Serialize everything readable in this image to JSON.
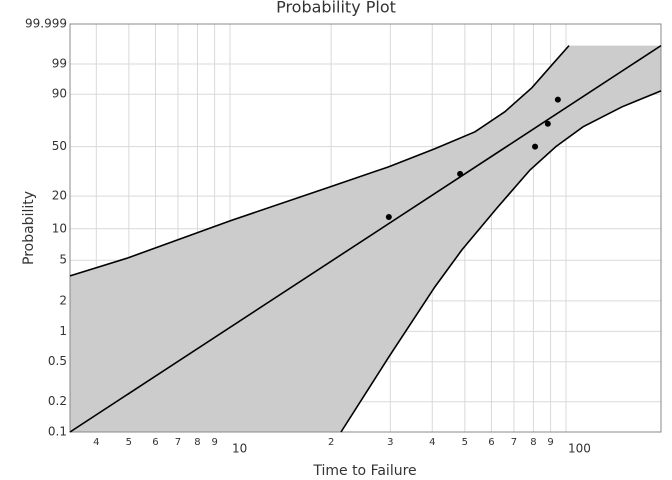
{
  "chart_data": {
    "type": "probability",
    "title": "Probability Plot",
    "x_label": "Time to Failure",
    "y_label": "Probability",
    "xscale": "log",
    "yscale": "weibull",
    "grid": true,
    "fill_color": "#cccccc",
    "color": "#000000",
    "xlim": [
      3.34,
      191.8
    ],
    "ylim": [
      0.1,
      99.999
    ],
    "xticks": [
      {
        "value": 4,
        "label": "4"
      },
      {
        "value": 5,
        "label": "5"
      },
      {
        "value": 6,
        "label": "6"
      },
      {
        "value": 7,
        "label": "7"
      },
      {
        "value": 8,
        "label": "8"
      },
      {
        "value": 9,
        "label": "9"
      },
      10,
      {
        "value": 20,
        "label": "2"
      },
      {
        "value": 30,
        "label": "3"
      },
      {
        "value": 40,
        "label": "4"
      },
      {
        "value": 50,
        "label": "5"
      },
      {
        "value": 60,
        "label": "6"
      },
      {
        "value": 70,
        "label": "7"
      },
      {
        "value": 80,
        "label": "8"
      },
      {
        "value": 90,
        "label": "9"
      },
      100
    ],
    "yticks": [
      0.1,
      0.2,
      0.5,
      1,
      2,
      5,
      10,
      20,
      50,
      90,
      99,
      99.999
    ],
    "points": {
      "x": [
        29.7,
        48.4,
        80.9,
        88.3,
        94.6
      ],
      "values": [
        12.9,
        31.0,
        50.0,
        69.0,
        86.9
      ]
    },
    "fit": {
      "x": [
        3.34,
        191.8
      ],
      "values": [
        0.1,
        99.91
      ]
    },
    "upper": {
      "x": [
        3.34,
        4.97,
        10,
        19.85,
        29.7,
        40.7,
        53.6,
        65.8,
        79.2,
        91.5,
        102.1
      ],
      "values": [
        3.52,
        5.27,
        11.87,
        24.1,
        35.4,
        48.3,
        62.2,
        78.6,
        93.1,
        99.03,
        99.91
      ]
    },
    "lower": {
      "x": [
        21.4,
        29.7,
        40.7,
        49.0,
        62.4,
        78.2,
        93.3,
        112.4,
        146.9,
        191.8
      ],
      "values": [
        0.1,
        0.557,
        2.74,
        6.29,
        15.7,
        33.4,
        50.0,
        66.4,
        82.2,
        91.7
      ]
    }
  }
}
